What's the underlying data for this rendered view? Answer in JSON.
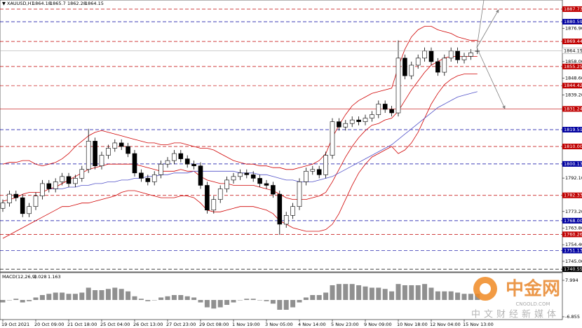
{
  "chart_data": {
    "type": "candlestick",
    "symbol": "XAUUSD,H1",
    "categories": [
      "19 Oct 2021",
      null,
      null,
      null,
      null,
      "20 Oct 09:00",
      null,
      null,
      null,
      null,
      "21 Oct 18:00",
      null,
      null,
      null,
      null,
      "25 Oct 04:00",
      null,
      null,
      null,
      null,
      "26 Oct 13:00",
      null,
      null,
      null,
      null,
      "27 Oct 23:00",
      null,
      null,
      null,
      null,
      "29 Oct 08:00",
      null,
      null,
      null,
      null,
      "1 Nov 19:00",
      null,
      null,
      null,
      null,
      "3 Nov 05:00",
      null,
      null,
      null,
      null,
      "4 Nov 14:00",
      null,
      null,
      null,
      null,
      "5 Nov 23:00",
      null,
      null,
      null,
      null,
      "9 Nov 09:00",
      null,
      null,
      null,
      null,
      "10 Nov 18:00",
      null,
      null,
      null,
      null,
      "12 Nov 04:00",
      null,
      null,
      null,
      null,
      "15 Nov 13:00",
      null,
      null
    ],
    "open": [
      1775,
      1778,
      1783,
      1781,
      1772,
      1776,
      1782,
      1789,
      1786,
      1790,
      1793,
      1789,
      1792,
      1797,
      1813,
      1799,
      1805,
      1809,
      1812,
      1810,
      1806,
      1795,
      1792,
      1790,
      1794,
      1800,
      1802,
      1806,
      1803,
      1800,
      1799,
      1788,
      1774,
      1780,
      1786,
      1791,
      1793,
      1795,
      1794,
      1792,
      1789,
      1788,
      1783,
      1766,
      1771,
      1776,
      1790,
      1796,
      1797,
      1794,
      1805,
      1824,
      1821,
      1823,
      1825,
      1824,
      1826,
      1828,
      1834,
      1831,
      1829,
      1860,
      1850,
      1856,
      1860,
      1864,
      1858,
      1852,
      1860,
      1864,
      1859,
      1861,
      1864.18
    ],
    "high": [
      1780,
      1785,
      1785,
      1783,
      1778,
      1784,
      1791,
      1791,
      1792,
      1795,
      1795,
      1794,
      1799,
      1820,
      1815,
      1807,
      1811,
      1814,
      1814,
      1812,
      1808,
      1797,
      1794,
      1796,
      1802,
      1804,
      1808,
      1808,
      1805,
      1802,
      1801,
      1790,
      1782,
      1788,
      1793,
      1795,
      1797,
      1797,
      1796,
      1794,
      1791,
      1790,
      1785,
      1773,
      1778,
      1792,
      1798,
      1799,
      1799,
      1807,
      1826,
      1826,
      1825,
      1827,
      1827,
      1828,
      1830,
      1836,
      1836,
      1833,
      1870,
      1862,
      1858,
      1862,
      1866,
      1866,
      1860,
      1862,
      1866,
      1866,
      1863,
      1865,
      1865.7
    ],
    "low": [
      1773,
      1776,
      1779,
      1770,
      1770,
      1774,
      1780,
      1784,
      1784,
      1788,
      1787,
      1787,
      1790,
      1795,
      1797,
      1797,
      1803,
      1807,
      1808,
      1804,
      1793,
      1790,
      1788,
      1788,
      1792,
      1798,
      1800,
      1801,
      1798,
      1797,
      1786,
      1772,
      1772,
      1778,
      1784,
      1789,
      1791,
      1792,
      1790,
      1787,
      1786,
      1781,
      1760,
      1764,
      1769,
      1774,
      1788,
      1794,
      1792,
      1792,
      1803,
      1819,
      1819,
      1821,
      1822,
      1822,
      1824,
      1826,
      1829,
      1827,
      1827,
      1848,
      1848,
      1854,
      1858,
      1856,
      1850,
      1850,
      1858,
      1857,
      1857,
      1859,
      1862.28
    ],
    "close": [
      1778,
      1783,
      1781,
      1772,
      1776,
      1782,
      1789,
      1786,
      1790,
      1793,
      1789,
      1792,
      1797,
      1813,
      1799,
      1805,
      1809,
      1812,
      1810,
      1806,
      1795,
      1792,
      1790,
      1794,
      1800,
      1802,
      1806,
      1803,
      1800,
      1799,
      1788,
      1774,
      1780,
      1786,
      1791,
      1793,
      1795,
      1794,
      1792,
      1789,
      1788,
      1783,
      1766,
      1771,
      1776,
      1790,
      1796,
      1797,
      1794,
      1805,
      1824,
      1821,
      1823,
      1825,
      1824,
      1826,
      1828,
      1834,
      1831,
      1829,
      1860,
      1850,
      1856,
      1860,
      1864,
      1858,
      1852,
      1860,
      1864,
      1859,
      1861,
      1863,
      1864.15
    ],
    "up_color": "#ffffff",
    "down_color": "#000000",
    "wick_color": "#000000",
    "overlays": [
      {
        "color": "#d00000",
        "values": [
          1800,
          1801,
          1801,
          1802,
          1802,
          1800,
          1799,
          1800,
          1801,
          1803,
          1806,
          1810,
          1813,
          1816,
          1818,
          1819,
          1818,
          1817,
          1816,
          1815,
          1814,
          1813,
          1812,
          1812,
          1811,
          1811,
          1812,
          1812,
          1811,
          1810,
          1809,
          1809,
          1808,
          1806,
          1804,
          1802,
          1801,
          1800,
          1800,
          1799,
          1799,
          1798,
          1798,
          1797,
          1797,
          1798,
          1799,
          1800,
          1802,
          1806,
          1815,
          1822,
          1828,
          1833,
          1836,
          1838,
          1840,
          1841,
          1842,
          1843,
          1855,
          1865,
          1872,
          1876,
          1878,
          1878,
          1876,
          1875,
          1874,
          1872,
          1871,
          1870,
          1870
        ]
      },
      {
        "color": "#d00000",
        "values": [
          1779,
          1780,
          1781,
          1783,
          1784,
          1784,
          1784,
          1786,
          1787,
          1789,
          1791,
          1793,
          1795,
          1797,
          1798,
          1799,
          1800,
          1800,
          1800,
          1800,
          1800,
          1799,
          1798,
          1797,
          1796,
          1796,
          1796,
          1797,
          1796,
          1796,
          1793,
          1791,
          1790,
          1789,
          1789,
          1788,
          1788,
          1788,
          1788,
          1787,
          1786,
          1785,
          1783,
          1781,
          1780,
          1780,
          1780,
          1781,
          1782,
          1784,
          1790,
          1797,
          1804,
          1810,
          1815,
          1819,
          1822,
          1823,
          1825,
          1826,
          1830,
          1836,
          1842,
          1847,
          1852,
          1856,
          1858,
          1860,
          1861,
          1861,
          1861,
          1861,
          1861
        ]
      },
      {
        "color": "#d00000",
        "values": [
          1758,
          1760,
          1762,
          1764,
          1766,
          1768,
          1770,
          1772,
          1774,
          1776,
          1776,
          1777,
          1778,
          1778,
          1779,
          1780,
          1781,
          1782,
          1784,
          1785,
          1785,
          1784,
          1783,
          1782,
          1781,
          1781,
          1781,
          1782,
          1782,
          1781,
          1778,
          1774,
          1773,
          1773,
          1774,
          1775,
          1776,
          1776,
          1776,
          1775,
          1774,
          1772,
          1768,
          1766,
          1764,
          1763,
          1762,
          1762,
          1762,
          1763,
          1766,
          1772,
          1780,
          1788,
          1795,
          1800,
          1804,
          1806,
          1808,
          1810,
          1806,
          1808,
          1812,
          1818,
          1826,
          1834,
          1840,
          1845,
          1848,
          1850,
          1851,
          1851,
          1851
        ]
      },
      {
        "color": "#5050c8",
        "values": [
          null,
          null,
          null,
          null,
          null,
          null,
          null,
          1786,
          1786,
          1786,
          1787,
          1787,
          1788,
          1788,
          1789,
          1789,
          1790,
          1790,
          1791,
          1791,
          1792,
          1792,
          1793,
          1793,
          1794,
          1794,
          1795,
          1795,
          1795,
          1796,
          1796,
          1796,
          1796,
          1796,
          1796,
          1796,
          1795,
          1795,
          1795,
          1794,
          1794,
          1793,
          1792,
          1791,
          1791,
          1790,
          1790,
          1790,
          1791,
          1792,
          1793,
          1795,
          1797,
          1799,
          1801,
          1803,
          1805,
          1807,
          1809,
          1811,
          1814,
          1817,
          1820,
          1823,
          1826,
          1829,
          1832,
          1834,
          1836,
          1838,
          1839,
          1840,
          1841
        ]
      }
    ],
    "ylim": [
      1739.4,
      1889.7
    ],
    "yticks": [
      {
        "value": 1876.9,
        "label": "1876.90"
      },
      {
        "value": 1858,
        "label": "1858.00"
      },
      {
        "value": 1848.6,
        "label": "1848.60"
      },
      {
        "value": 1839.2,
        "label": "1839.20"
      },
      {
        "value": 1792.1,
        "label": "1792.10"
      },
      {
        "value": 1773.2,
        "label": "1773.20"
      },
      {
        "value": 1763.8,
        "label": "1763.80"
      },
      {
        "value": 1754.4,
        "label": "1754.40"
      },
      {
        "value": 1745,
        "label": "1745.00"
      }
    ],
    "levels": [
      {
        "value": 1887.73,
        "color": "#c00000",
        "style": "dash"
      },
      {
        "value": 1880.59,
        "color": "#0000a0",
        "style": "dash"
      },
      {
        "value": 1869.44,
        "color": "#c00000",
        "style": "dash"
      },
      {
        "value": 1855.25,
        "color": "#c00000",
        "style": "dash"
      },
      {
        "value": 1844.42,
        "color": "#c00000",
        "style": "dash"
      },
      {
        "value": 1831.24,
        "color": "#c00000",
        "style": "solid"
      },
      {
        "value": 1819.51,
        "color": "#0000a0",
        "style": "dash"
      },
      {
        "value": 1810,
        "label": "1810.00",
        "color": "#c00000",
        "style": "dash"
      },
      {
        "value": 1800.13,
        "color": "#0000a0",
        "style": "dash"
      },
      {
        "value": 1782.33,
        "color": "#c00000",
        "style": "dash"
      },
      {
        "value": 1768,
        "label": "1768.00",
        "color": "#0000a0",
        "style": "dash"
      },
      {
        "value": 1760.26,
        "color": "#c00000",
        "style": "dash"
      },
      {
        "value": 1751.13,
        "color": "#0000a0",
        "style": "dash"
      },
      {
        "value": 1740.55,
        "color": "#000000",
        "style": "dash"
      }
    ],
    "macd": {
      "title": "MACD(12,26,9)",
      "macd_value": 1.028,
      "signal_value": 1.163,
      "color": "#909090",
      "histogram": [
        -1,
        0,
        0.5,
        -1,
        -0.5,
        1,
        2,
        2.5,
        3,
        3,
        2.5,
        2.5,
        3,
        5,
        4,
        4,
        4.5,
        5,
        4.5,
        3.5,
        1.5,
        0.5,
        -0.5,
        0,
        1,
        1.5,
        2,
        2,
        1.5,
        1,
        -1,
        -3,
        -3.5,
        -3,
        -2,
        -1,
        0,
        0.5,
        0.5,
        0,
        -0.5,
        -1.5,
        -4,
        -4,
        -3,
        -1,
        1,
        2,
        2,
        3,
        6,
        6.5,
        6.5,
        6.5,
        6,
        5.5,
        5,
        5,
        4.5,
        3.5,
        6.5,
        6,
        6,
        6,
        6.5,
        5,
        3.5,
        3.5,
        3.5,
        3,
        2.5,
        2.5,
        2.5
      ],
      "ylim": [
        -6.855,
        7.994
      ],
      "yticks": [
        7.994,
        -6.855
      ]
    }
  },
  "watermark": {
    "brand": "中金网",
    "domain": "CNGOLD.COM",
    "slogan": "中文财经新媒体"
  }
}
